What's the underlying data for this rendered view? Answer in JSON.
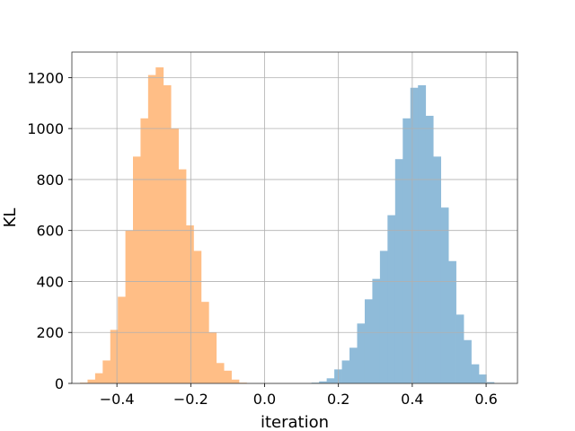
{
  "chart_data": {
    "type": "histogram",
    "title": "",
    "xlabel": "iteration",
    "ylabel": "KL",
    "xlim": [
      -0.522,
      0.685
    ],
    "ylim": [
      0,
      1300
    ],
    "grid": true,
    "legend": "none",
    "x_ticks": [
      -0.4,
      -0.2,
      0.0,
      0.2,
      0.4,
      0.6
    ],
    "x_tick_labels": [
      "−0.4",
      "−0.2",
      "0.0",
      "0.2",
      "0.4",
      "0.6"
    ],
    "y_ticks": [
      0,
      200,
      400,
      600,
      800,
      1000,
      1200
    ],
    "y_tick_labels": [
      "0",
      "200",
      "400",
      "600",
      "800",
      "1000",
      "1200"
    ],
    "series": [
      {
        "color": "#ffbe86",
        "bin_start": -0.5,
        "bin_width": 0.0205,
        "counts": [
          3,
          15,
          40,
          90,
          210,
          340,
          600,
          890,
          1040,
          1210,
          1240,
          1170,
          1000,
          840,
          620,
          520,
          320,
          200,
          80,
          50,
          15,
          3
        ]
      },
      {
        "color": "#8fbbd9",
        "bin_start": 0.127,
        "bin_width": 0.0206,
        "counts": [
          3,
          8,
          20,
          55,
          90,
          140,
          235,
          330,
          410,
          520,
          660,
          880,
          1040,
          1160,
          1170,
          1050,
          890,
          690,
          480,
          270,
          170,
          75,
          35,
          5
        ]
      }
    ]
  }
}
